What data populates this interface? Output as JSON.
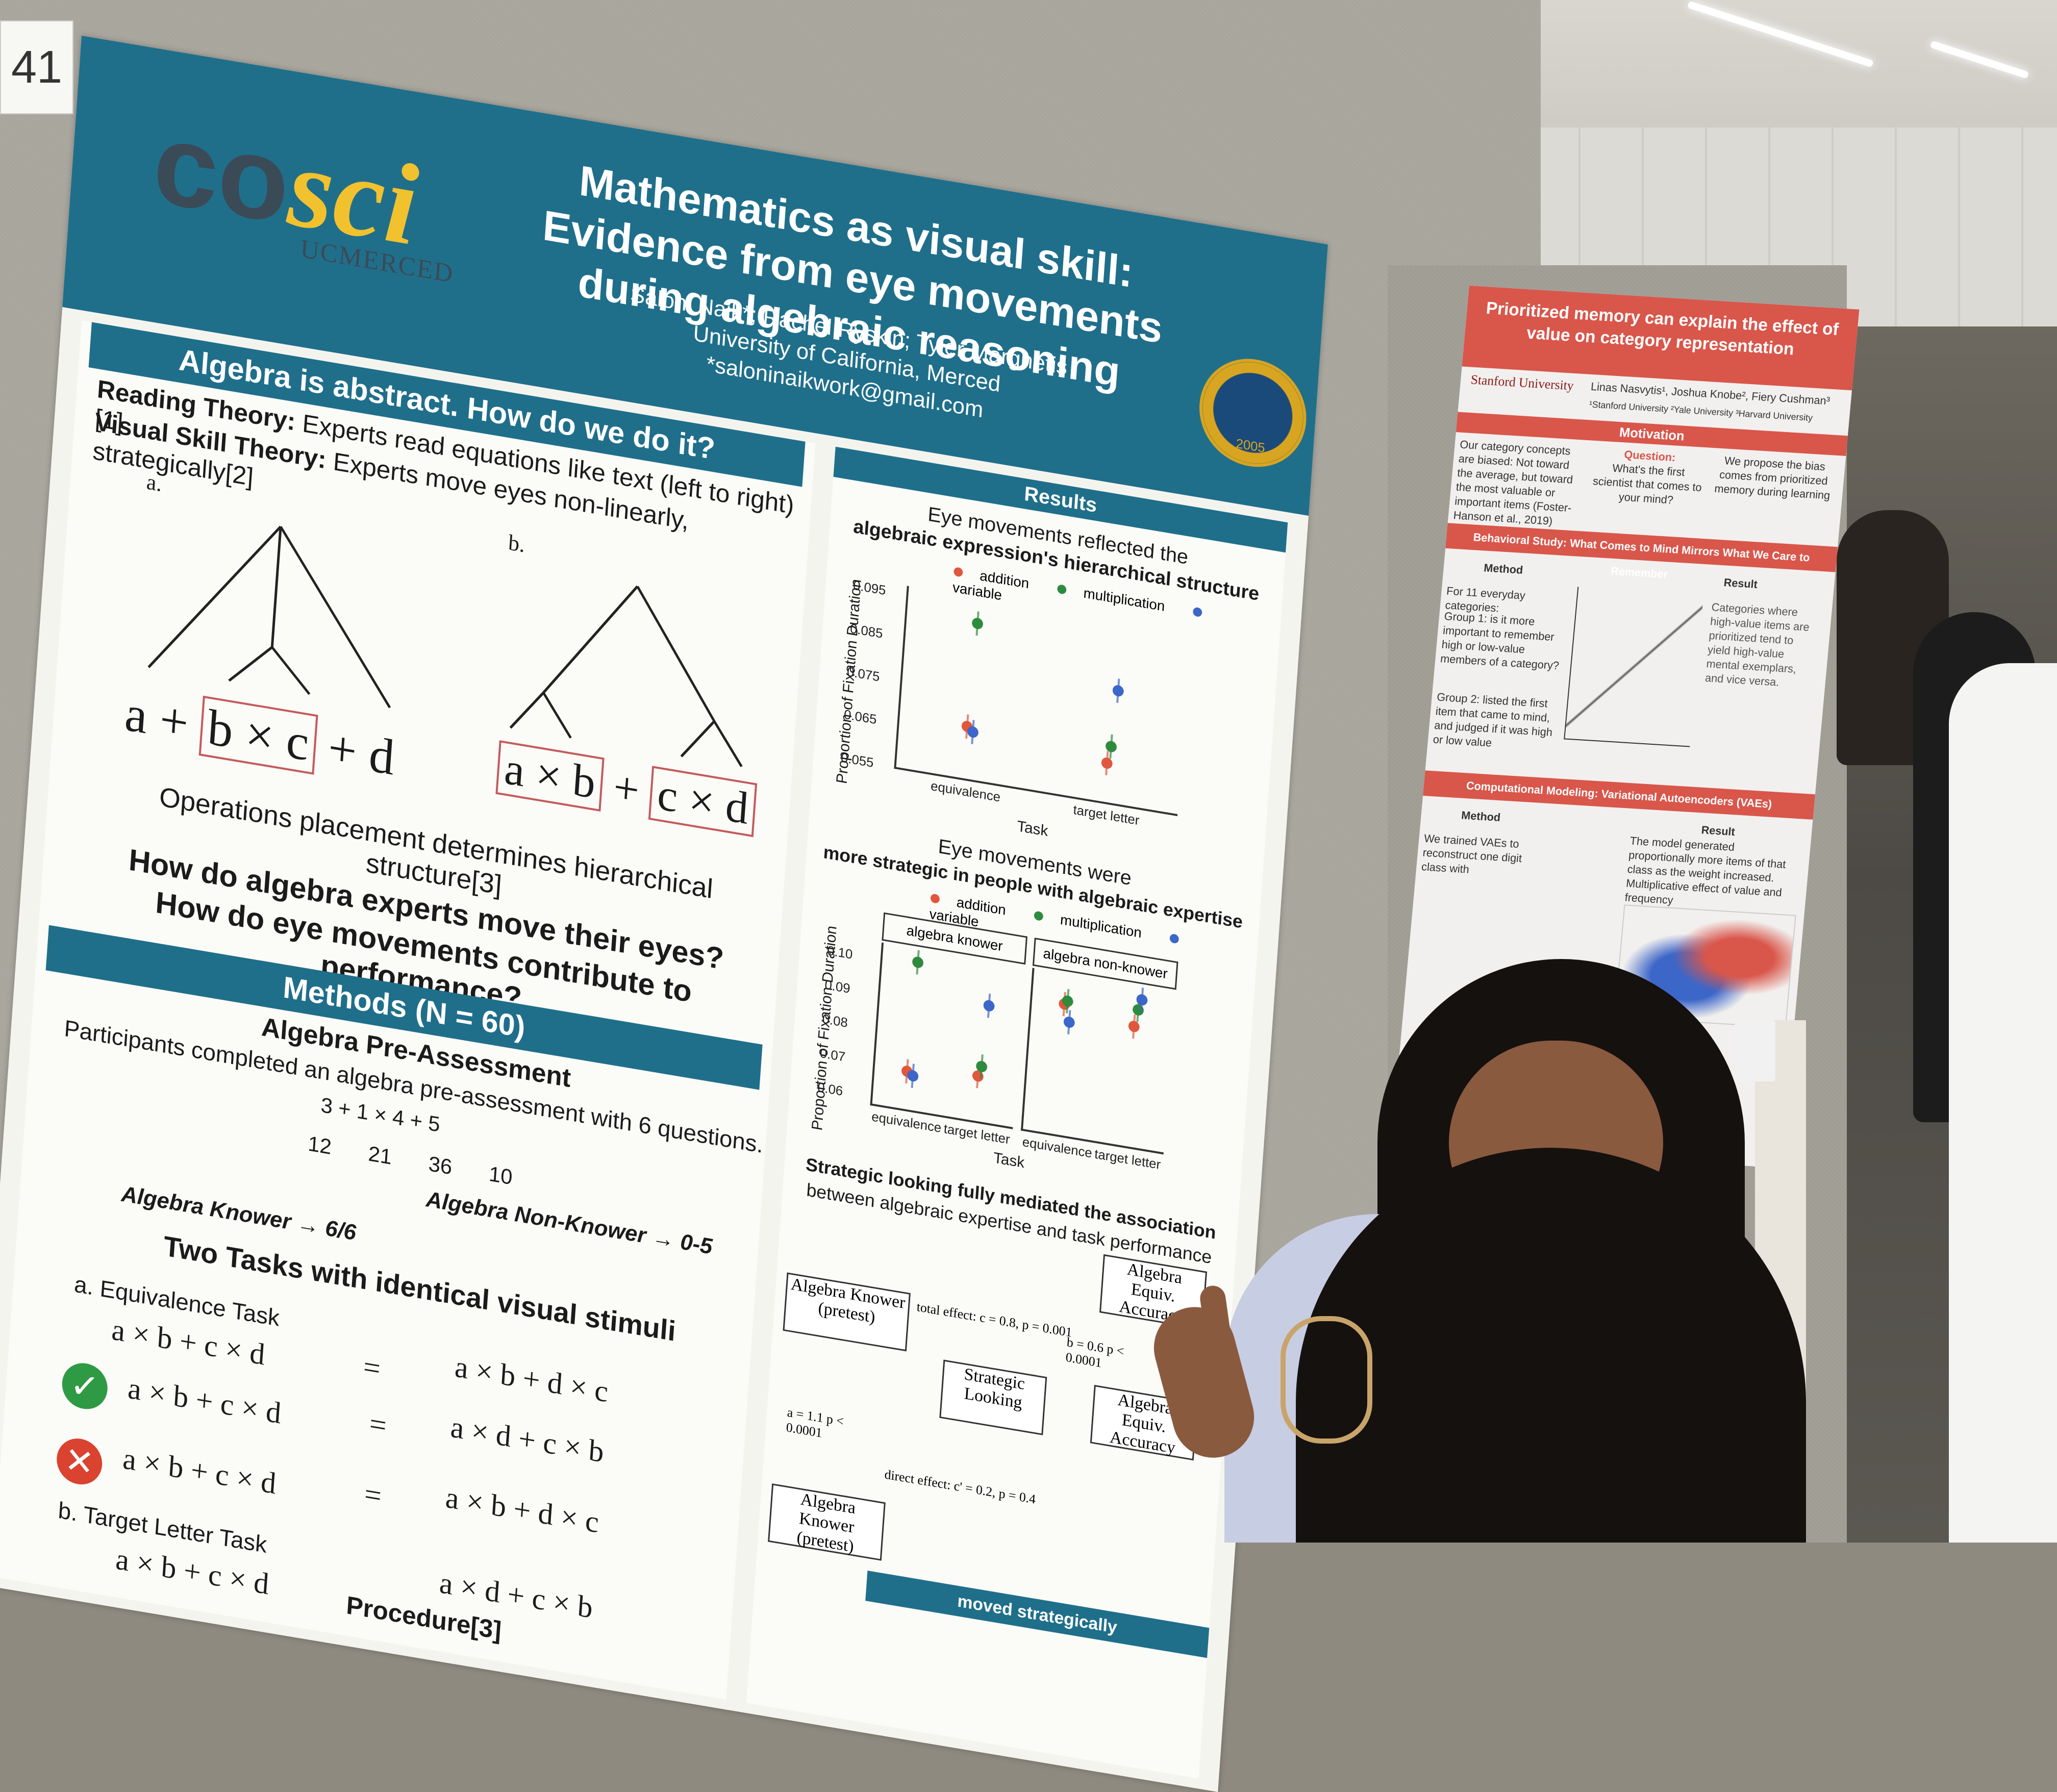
{
  "booth_number": "41",
  "poster": {
    "logo_text_left": "co",
    "logo_text_right": "sci",
    "logo_sub": "UCMERCED",
    "title": "Mathematics as visual skill: Evidence from eye movements during algebraic reasoning",
    "authors": "Saloni Naik*; Rachel Ryskin; Tyler Marghetis",
    "affiliation": "University of California, Merced",
    "email": "*saloninaikwork@gmail.com",
    "seal_year": "2005",
    "intro": {
      "heading": "Algebra is abstract. How do we do it?",
      "reading_label": "Reading Theory:",
      "reading_text": "Experts read equations like text (left to right)[1]",
      "visual_label": "Visual Skill Theory:",
      "visual_text": "Experts move eyes non-linearly, strategically[2]",
      "panel_a": "a.",
      "panel_b": "b.",
      "expr_a_1": "a +",
      "expr_a_box": "b × c",
      "expr_a_2": "+ d",
      "expr_b_box1": "a × b",
      "expr_b_mid": "+",
      "expr_b_box2": "c × d",
      "caption": "Operations placement determines hierarchical structure[3]",
      "question1": "How do algebra experts move their eyes?",
      "question2": "How do eye movements contribute to performance?"
    },
    "methods": {
      "heading": "Methods (N = 60)",
      "pre_heading": "Algebra Pre-Assessment",
      "pre_text": "Participants completed an algebra pre-assessment with 6 questions.",
      "sample_expr": "3 + 1 × 4 + 5",
      "numbers": [
        "12",
        "21",
        "36",
        "10"
      ],
      "non_knower": "Algebra Non-Knower → 0-5",
      "knower": "Algebra Knower → 6/6",
      "tasks_heading": "Two Tasks with identical visual stimuli",
      "task_a": "a. Equivalence Task",
      "task_b": "b. Target Letter Task",
      "eq_left": "a × b + c × d",
      "eq_sign": "=",
      "eq_right_1": "a × b + d × c",
      "eq_right_2": "a × d + c × b",
      "eq_right_3": "a × b + d × c",
      "eq_right_4": "a × d + c × b",
      "check_symbol": "✓",
      "cross_symbol": "✕",
      "procedure": "Procedure[3]"
    },
    "results": {
      "heading": "Results",
      "r1_line1": "Eye movements reflected the",
      "r1_line2": "algebraic expression's hierarchical structure",
      "legend": [
        "addition",
        "multiplication",
        "variable"
      ],
      "y_label": "Proportion of Fixation Duration",
      "x_label": "Task",
      "r2_line1": "Eye movements were",
      "r2_line2": "more strategic in people with algebraic expertise",
      "panel_knower": "algebra knower",
      "panel_nonknower": "algebra non-knower",
      "r3_line1": "Strategic looking fully mediated the association",
      "r3_line2": "between algebraic expertise and task performance",
      "med_x": "Algebra Knower (pretest)",
      "med_m": "Strategic Looking",
      "med_y": "Algebra Equiv. Accuracy",
      "total_effect": "total effect: c = 0.8, p = 0.001",
      "a_path": "a = 1.1 p < 0.0001",
      "b_path": "b = 0.6 p < 0.0001",
      "direct_effect": "direct effect: c' = 0.2, p = 0.4",
      "bottom_text": "moved strategically"
    }
  },
  "chart_data": [
    {
      "type": "scatter",
      "title": "",
      "ylabel": "Proportion of Fixation Duration",
      "xlabel": "Task",
      "categories": [
        "equivalence",
        "target letter"
      ],
      "yticks": [
        "0.055",
        "0.065",
        "0.075",
        "0.085",
        "0.095"
      ],
      "ylim": [
        0.055,
        0.097
      ],
      "series": [
        {
          "name": "addition",
          "color": "#e0573d",
          "values": [
            0.067,
            0.064
          ]
        },
        {
          "name": "multiplication",
          "color": "#2e8b3d",
          "values": [
            0.091,
            0.068
          ]
        },
        {
          "name": "variable",
          "color": "#3c66c8",
          "values": [
            0.066,
            0.081
          ]
        }
      ]
    },
    {
      "type": "scatter",
      "ylabel": "Proportion of Fixation Duration",
      "xlabel": "Task",
      "panels": [
        "algebra knower",
        "algebra non-knower"
      ],
      "categories": [
        "equivalence",
        "target letter"
      ],
      "yticks": [
        "0.06",
        "0.07",
        "0.08",
        "0.09",
        "0.10"
      ],
      "ylim": [
        0.058,
        0.105
      ],
      "series": [
        {
          "name": "addition",
          "color": "#e0573d",
          "knower": [
            0.069,
            0.071
          ],
          "nonknower": [
            0.096,
            0.093
          ]
        },
        {
          "name": "multiplication",
          "color": "#2e8b3d",
          "knower": [
            0.101,
            0.074
          ],
          "nonknower": [
            0.097,
            0.098
          ]
        },
        {
          "name": "variable",
          "color": "#3c66c8",
          "knower": [
            0.068,
            0.092
          ],
          "nonknower": [
            0.091,
            0.101
          ]
        }
      ]
    }
  ],
  "poster2": {
    "title": "Prioritized memory can explain the effect of value on category representation",
    "university": "Stanford University",
    "authors": "Linas Nasvytis¹, Joshua Knobe², Fiery Cushman³",
    "affil": "¹Stanford University ²Yale University ³Harvard University",
    "motivation": "Motivation",
    "mot_1": "Our category concepts are biased: Not toward the average, but toward the most valuable or important items",
    "mot_1_cite": "(Foster-Hanson et al., 2019)",
    "mot_q_label": "Question:",
    "mot_q": "What's the first scientist that comes to your mind?",
    "mot_3": "We propose the bias comes from prioritized memory during learning",
    "behav": "Behavioral Study: What Comes to Mind Mirrors What We Care to Remember",
    "method": "Method",
    "result": "Result",
    "m1": "For 11 everyday categories:",
    "g1": "Group 1: is it more important to remember high or low-value members of a category?",
    "g2": "Group 2: listed the first item that came to mind, and judged if it was high or low value",
    "res_text": "Categories where high-value items are prioritized tend to yield high-value mental exemplars, and vice versa.",
    "comp": "Computational Modeling: Variational Autoencoders (VAEs)",
    "comp_method": "Method",
    "comp_result": "Result",
    "comp_m": "We trained VAEs to reconstruct one digit class with",
    "comp_r": "The model generated proportionally more items of that class as the weight increased. Multiplicative effect of value and frequency"
  }
}
